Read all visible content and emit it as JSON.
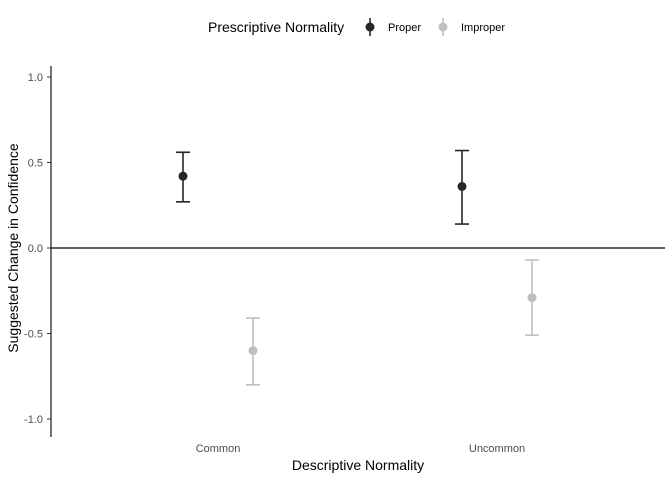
{
  "chart_data": {
    "type": "scatter",
    "subtype": "point-with-errorbars",
    "categories": [
      "Common",
      "Uncommon"
    ],
    "xlabel": "Descriptive Normality",
    "ylabel": "Suggested Change in Confidence",
    "ylim": [
      -1.1,
      1.1
    ],
    "yticks": [
      "-1.0",
      "-0.5",
      "0.0",
      "0.5",
      "1.0"
    ],
    "reference_line_y": 0,
    "grid": false,
    "legend": {
      "title": "Prescriptive Normality",
      "position": "top"
    },
    "series": [
      {
        "name": "Proper",
        "color": "#262626",
        "values": [
          0.42,
          0.36
        ],
        "lower": [
          0.27,
          0.14
        ],
        "upper": [
          0.56,
          0.57
        ]
      },
      {
        "name": "Improper",
        "color": "#bfbfbf",
        "values": [
          -0.6,
          -0.29
        ],
        "lower": [
          -0.8,
          -0.51
        ],
        "upper": [
          -0.41,
          -0.07
        ]
      }
    ]
  }
}
